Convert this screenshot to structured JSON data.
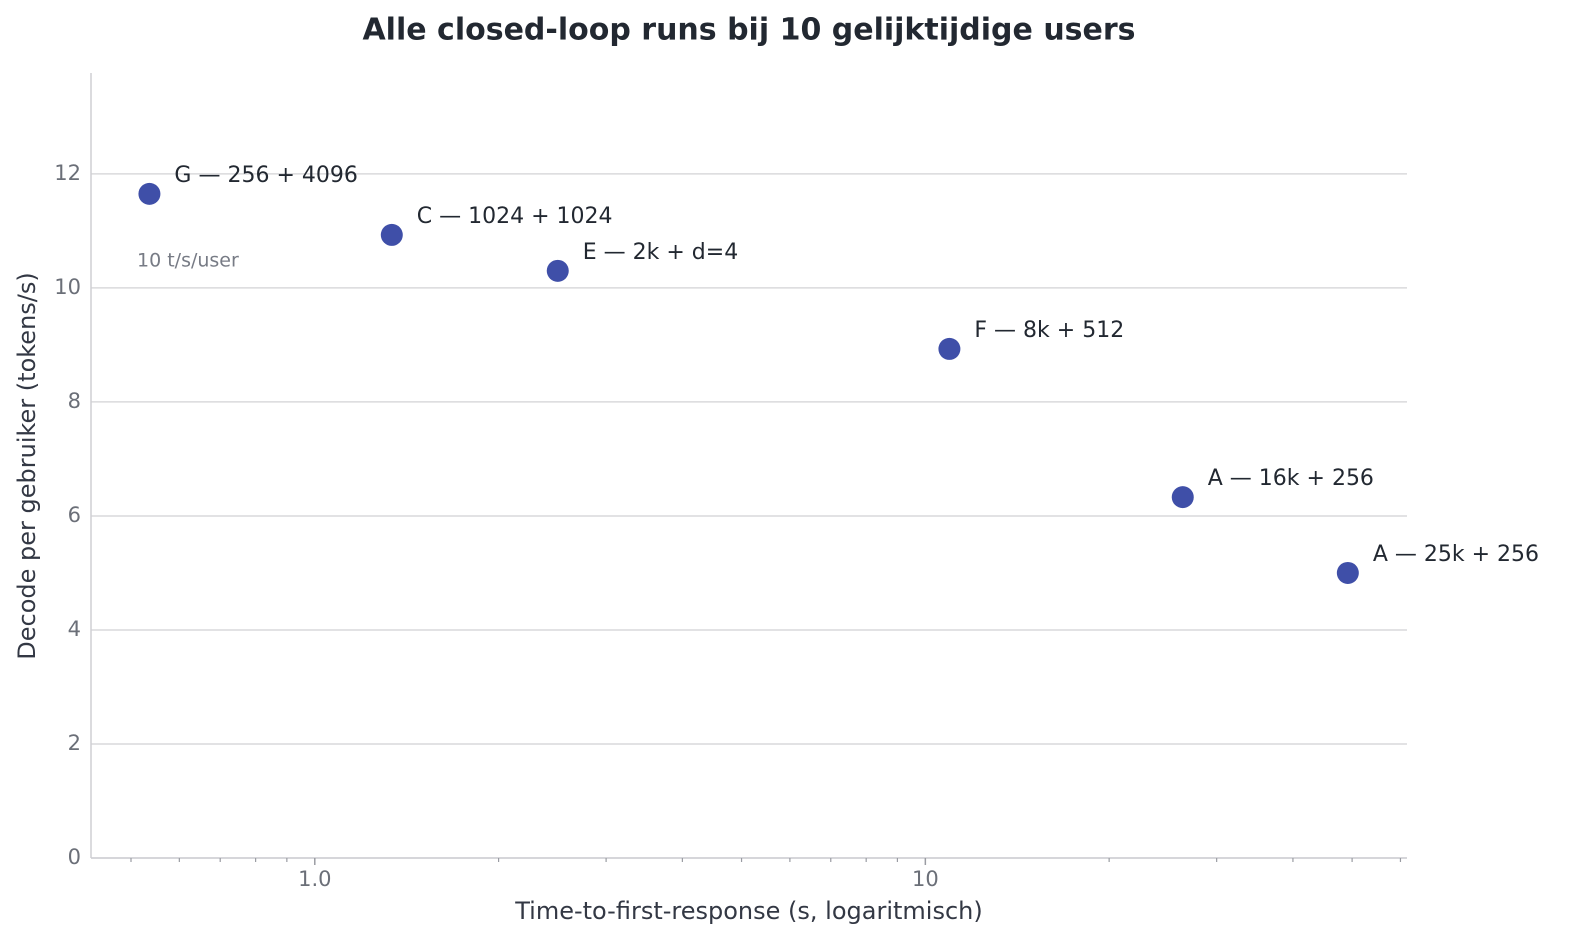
{
  "chart_data": {
    "type": "scatter",
    "title": "Alle closed-loop runs bij 10 gelijktijdige users",
    "x_label": "Time-to-first-response (s, logaritmisch)",
    "y_label": "Decode per gebruiker (tokens/s)",
    "annotation": "10 t/s/user",
    "x_scale": "log",
    "grid": "y",
    "color": "#3f4fa8",
    "labels": [
      "G — 256 + 4096",
      "C — 1024 + 1024",
      "E — 2k + d=4",
      "F — 8k + 512",
      "A — 16k + 256",
      "A — 25k + 256"
    ],
    "x": [
      0.536,
      1.337,
      2.5,
      10.95,
      26.4,
      49.2
    ],
    "values": [
      11.65,
      10.93,
      10.3,
      8.93,
      6.33,
      5.0
    ],
    "xlim": [
      0.43,
      61.5
    ],
    "ylim": [
      0,
      13.77
    ],
    "xticks": [
      {
        "value": 1,
        "label": "1.0"
      },
      10
    ],
    "xminor_ticks": [
      0.5,
      0.6,
      0.7,
      0.8,
      0.9,
      2,
      3,
      4,
      5,
      6,
      7,
      8,
      9,
      20,
      30,
      40,
      50,
      60
    ],
    "yticks": [
      0,
      2,
      4,
      6,
      8,
      10,
      12
    ]
  }
}
